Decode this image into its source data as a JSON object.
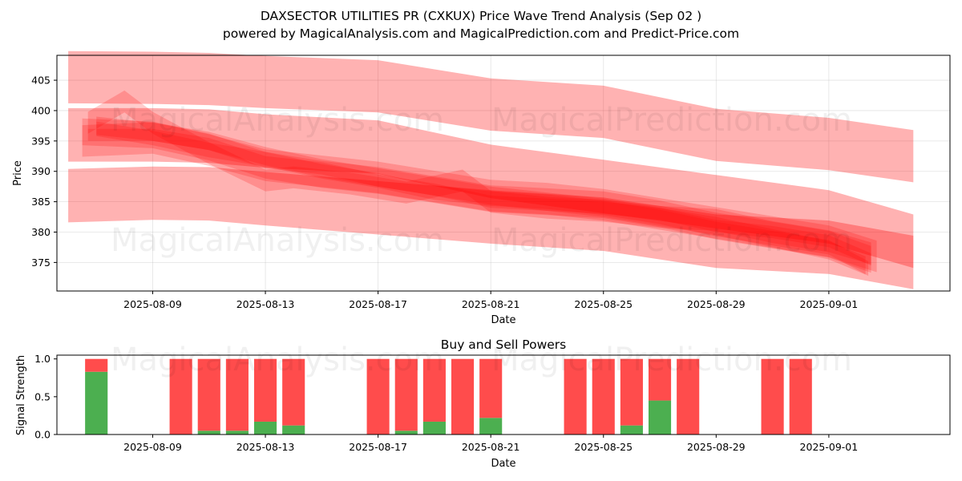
{
  "header": {
    "title": "DAXSECTOR UTILITIES PR (CXKUX) Price Wave Trend Analysis (Sep 02 )",
    "subtitle": "powered by MagicalAnalysis.com and MagicalPrediction.com and Predict-Price.com"
  },
  "watermarks": [
    "MagicalAnalysis.com",
    "MagicalPrediction.com"
  ],
  "colors": {
    "band": "#ff0000",
    "buy": "#4caf50",
    "sell": "#ff4c4c"
  },
  "chart_data": [
    {
      "type": "area",
      "title": "",
      "xlabel": "Date",
      "ylabel": "Price",
      "xlim": [
        -3.4,
        28.3
      ],
      "ylim": [
        370.3,
        409.1
      ],
      "grid": true,
      "x_ticks": [
        {
          "day": 0,
          "label": "2025-08-09"
        },
        {
          "day": 4,
          "label": "2025-08-13"
        },
        {
          "day": 8,
          "label": "2025-08-17"
        },
        {
          "day": 12,
          "label": "2025-08-21"
        },
        {
          "day": 16,
          "label": "2025-08-25"
        },
        {
          "day": 20,
          "label": "2025-08-29"
        },
        {
          "day": 24,
          "label": "2025-09-01"
        }
      ],
      "y_ticks": [
        375,
        380,
        385,
        390,
        395,
        400,
        405
      ],
      "bands": [
        {
          "name": "upper-wave",
          "x": [
            -3,
            0,
            2,
            4,
            8,
            12,
            16,
            20,
            24,
            27
          ],
          "center": [
            405.5,
            405.4,
            405.2,
            404.7,
            404,
            401,
            399.8,
            396,
            394.5,
            392.5
          ],
          "half_width": 4.3
        },
        {
          "name": "middle-wave",
          "x": [
            -3,
            0,
            2,
            4,
            8,
            12,
            16,
            20,
            24,
            27
          ],
          "center": [
            396,
            396,
            395.8,
            395,
            394,
            390,
            387.5,
            385,
            382.5,
            378.5
          ],
          "half_width": 4.4
        },
        {
          "name": "lower-wave",
          "x": [
            -3,
            0,
            2,
            4,
            8,
            12,
            16,
            20,
            24,
            27
          ],
          "center": [
            386,
            386.4,
            386.3,
            385.5,
            384,
            382.5,
            381.3,
            378.5,
            377.5,
            375
          ],
          "half_width": 4.4
        },
        {
          "name": "trend-1",
          "x": [
            -2.5,
            0,
            2,
            4,
            6,
            8,
            10,
            12,
            14,
            16,
            18,
            20,
            22,
            24,
            25.5
          ],
          "center": [
            396.5,
            396,
            394,
            391,
            389.5,
            388.5,
            387,
            385.5,
            385,
            384.5,
            383,
            381,
            379.5,
            378,
            375.5
          ],
          "half_width": 2.2
        },
        {
          "name": "trend-2",
          "x": [
            -2.3,
            -1,
            0,
            2,
            4,
            5,
            7,
            9,
            11,
            12,
            14,
            16,
            18,
            20,
            22,
            24,
            25.5
          ],
          "center": [
            398,
            401.5,
            398,
            393,
            388.5,
            389,
            388,
            386.5,
            388.5,
            385,
            384,
            383.5,
            382.5,
            382,
            380,
            378.5,
            376.5
          ],
          "half_width": 1.8
        },
        {
          "name": "trend-3",
          "x": [
            -2,
            0,
            2,
            4,
            6,
            8,
            10,
            12,
            14,
            16,
            18,
            20,
            22,
            24,
            25.3
          ],
          "center": [
            397.5,
            396.5,
            395,
            392.5,
            390.5,
            389,
            387.5,
            386,
            385,
            384,
            382.5,
            381,
            379,
            377,
            374.5
          ],
          "half_width": 1.5
        },
        {
          "name": "trend-4",
          "x": [
            -2.5,
            0,
            2,
            4,
            6,
            8,
            10,
            12,
            14,
            16,
            18,
            20,
            22,
            24,
            25.7
          ],
          "center": [
            395,
            395.5,
            393.5,
            391,
            390,
            389,
            387.5,
            386,
            385.5,
            384.5,
            383,
            381.5,
            380,
            378.5,
            376
          ],
          "half_width": 2.6
        },
        {
          "name": "trend-5",
          "x": [
            -2.3,
            0,
            2,
            4,
            6,
            8,
            10,
            12,
            14,
            16,
            18,
            20,
            22,
            24,
            25.5
          ],
          "center": [
            396,
            396,
            394.5,
            391.5,
            390.5,
            388.5,
            387,
            385,
            384.5,
            384,
            383,
            381,
            380,
            378.5,
            375.5
          ],
          "half_width": 1.0
        },
        {
          "name": "trend-6",
          "x": [
            -2,
            0,
            2,
            4,
            6,
            8,
            10,
            12,
            14,
            16,
            18,
            20,
            22,
            24,
            25.4
          ],
          "center": [
            397,
            395.5,
            393.5,
            392,
            390,
            388.5,
            386.5,
            385.5,
            385,
            384,
            382.5,
            380.5,
            379,
            377.5,
            374
          ],
          "half_width": 1.2
        }
      ]
    },
    {
      "type": "bar",
      "title": "Buy and Sell Powers",
      "xlabel": "Date",
      "ylabel": "Signal Strength",
      "xlim": [
        -3.4,
        28.3
      ],
      "ylim": [
        0,
        1.05
      ],
      "stacked": true,
      "x_ticks": [
        {
          "day": 0,
          "label": "2025-08-09"
        },
        {
          "day": 4,
          "label": "2025-08-13"
        },
        {
          "day": 8,
          "label": "2025-08-17"
        },
        {
          "day": 12,
          "label": "2025-08-21"
        },
        {
          "day": 16,
          "label": "2025-08-25"
        },
        {
          "day": 20,
          "label": "2025-08-29"
        },
        {
          "day": 24,
          "label": "2025-09-01"
        }
      ],
      "y_ticks": [
        0.0,
        0.5,
        1.0
      ],
      "x": [
        -2,
        1,
        2,
        3,
        4,
        5,
        8,
        9,
        10,
        11,
        12,
        15,
        16,
        17,
        18,
        19,
        22,
        23
      ],
      "series": [
        {
          "name": "Buy",
          "values": [
            0.83,
            0,
            0.05,
            0.05,
            0.17,
            0.12,
            0,
            0.05,
            0.17,
            0,
            0.22,
            0,
            0,
            0.12,
            0.45,
            0,
            0,
            0
          ]
        },
        {
          "name": "Sell",
          "values": [
            0.17,
            1.0,
            0.95,
            0.95,
            0.83,
            0.88,
            1.0,
            0.95,
            0.83,
            1.0,
            0.78,
            1.0,
            1.0,
            0.88,
            0.55,
            1.0,
            1.0,
            1.0
          ]
        }
      ]
    }
  ]
}
